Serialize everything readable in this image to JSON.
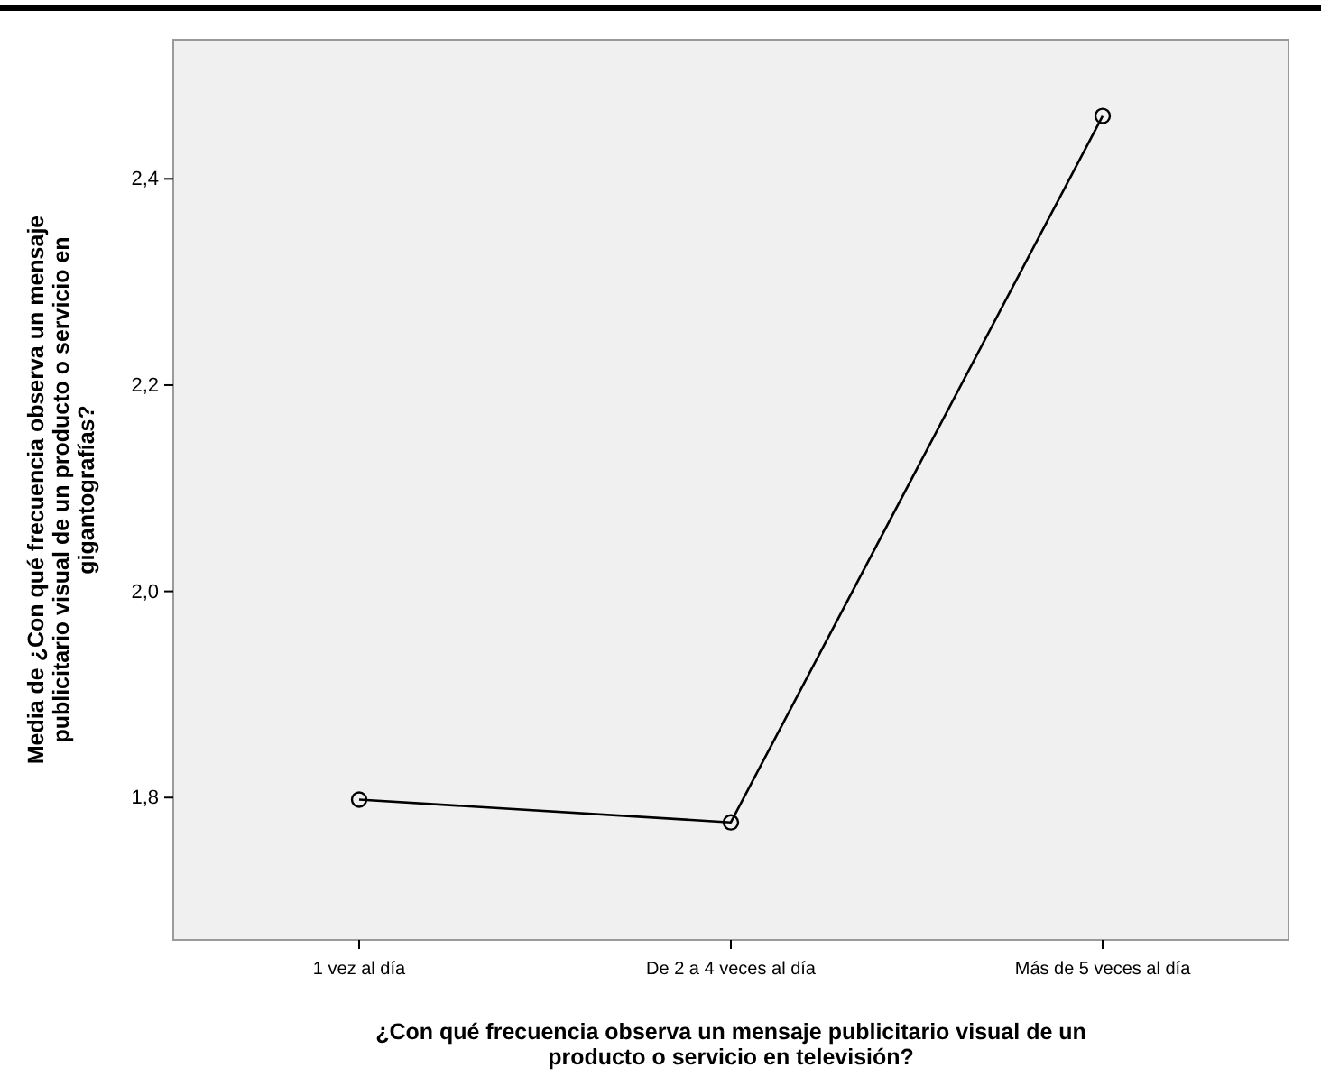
{
  "chart_data": {
    "type": "line",
    "xlabel": "¿Con qué frecuencia observa un mensaje publicitario visual de un\nproducto o servicio en televisión?",
    "ylabel": "Media de ¿Con qué frecuencia observa un mensaje\npublicitario visual de un producto o servicio en\ngigantografías?",
    "categories": [
      "1 vez al día",
      "De 2 a 4 veces al día",
      "Más de 5 veces al día"
    ],
    "series": [
      {
        "color": "#000000",
        "values": [
          1.798,
          1.776,
          2.461
        ]
      }
    ],
    "ylim": [
      1.662,
      2.535
    ],
    "yticks": [
      {
        "value": 1.8,
        "label": "1,8"
      },
      {
        "value": 2.0,
        "label": "2,0"
      },
      {
        "value": 2.2,
        "label": "2,2"
      },
      {
        "value": 2.4,
        "label": "2,4"
      }
    ],
    "marker": "circle",
    "line_style": "solid",
    "grid": false
  }
}
